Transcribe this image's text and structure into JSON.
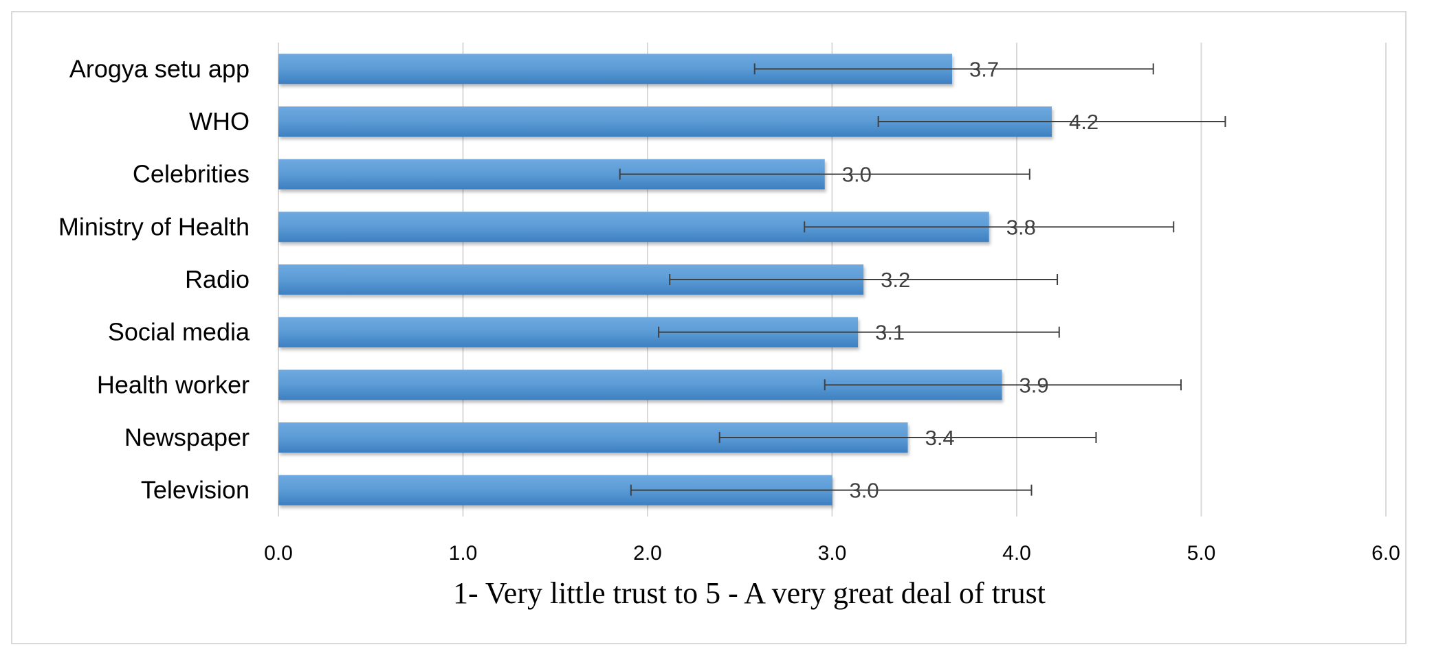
{
  "chart_data": {
    "type": "bar",
    "orientation": "horizontal",
    "categories": [
      "Arogya setu app",
      "WHO",
      "Celebrities",
      "Ministry of Health",
      "Radio",
      "Social media",
      "Health worker",
      "Newspaper",
      "Television"
    ],
    "values": [
      3.65,
      4.19,
      2.96,
      3.85,
      3.17,
      3.14,
      3.92,
      3.41,
      3.0
    ],
    "value_labels": [
      "3.7",
      "4.2",
      "3.0",
      "3.8",
      "3.2",
      "3.1",
      "3.9",
      "3.4",
      "3.0"
    ],
    "error_low": [
      2.58,
      3.25,
      1.85,
      2.85,
      2.12,
      2.06,
      2.96,
      2.39,
      1.91
    ],
    "error_high": [
      4.74,
      5.13,
      4.07,
      4.85,
      4.22,
      4.23,
      4.89,
      4.43,
      4.08
    ],
    "xlabel": "1- Very little trust to 5 - A very great deal of trust",
    "xlim": [
      0,
      6
    ],
    "xticks": [
      "0.0",
      "1.0",
      "2.0",
      "3.0",
      "4.0",
      "5.0",
      "6.0"
    ],
    "grid": "vertical",
    "legend": "none",
    "colors": {
      "bar": "#5b9bd5",
      "bar_light": "#6fa9e0",
      "bar_dark": "#3d7fc1",
      "error": "#404040",
      "grid": "#d9d9d9"
    }
  }
}
